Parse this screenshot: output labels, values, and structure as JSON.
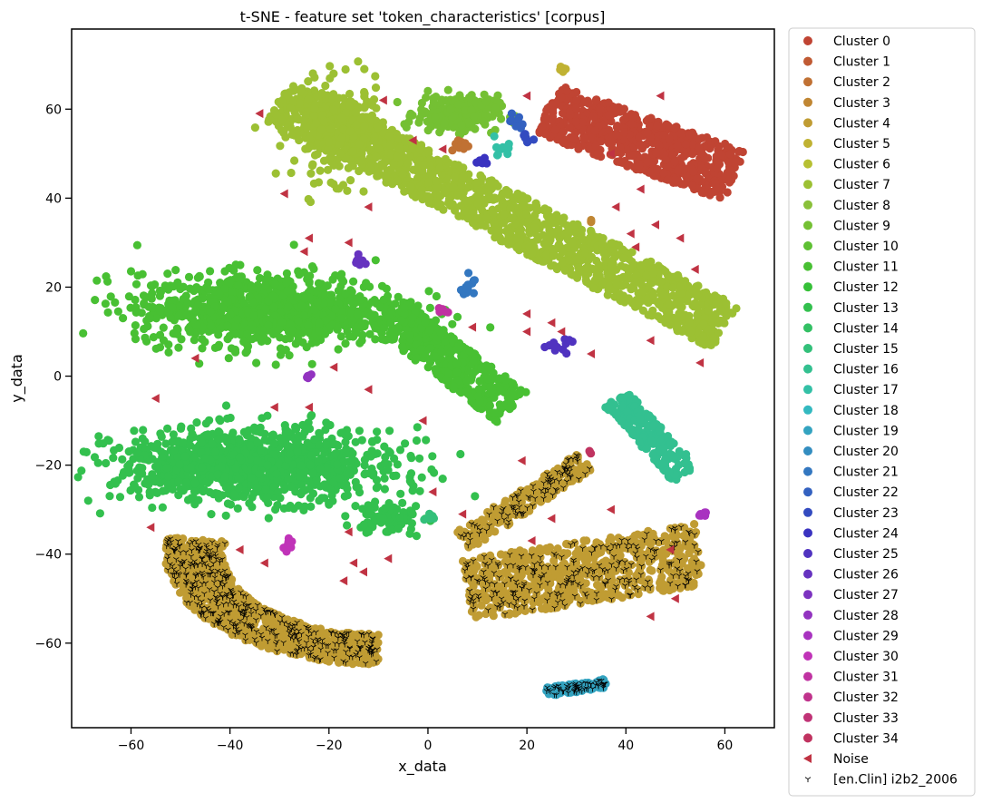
{
  "chart_data": {
    "type": "scatter",
    "title": "t-SNE - feature set 'token_characteristics' [corpus]",
    "xlabel": "x_data",
    "ylabel": "y_data",
    "xlim": [
      -72,
      70
    ],
    "ylim": [
      -79,
      78
    ],
    "xticks": [
      -60,
      -40,
      -20,
      0,
      20,
      40,
      60
    ],
    "yticks": [
      -60,
      -40,
      -20,
      0,
      20,
      40,
      60
    ],
    "xtick_labels": [
      "−60",
      "−40",
      "−20",
      "0",
      "20",
      "40",
      "60"
    ],
    "ytick_labels": [
      "−60",
      "−40",
      "−20",
      "0",
      "20",
      "40",
      "60"
    ],
    "grid": false,
    "legend_position": "outside-right",
    "legend": [
      {
        "label": "Cluster 0",
        "color": "#c04433",
        "marker": "circle"
      },
      {
        "label": "Cluster 1",
        "color": "#c05a33",
        "marker": "circle"
      },
      {
        "label": "Cluster 2",
        "color": "#c07133",
        "marker": "circle"
      },
      {
        "label": "Cluster 3",
        "color": "#c08633",
        "marker": "circle"
      },
      {
        "label": "Cluster 4",
        "color": "#c09c33",
        "marker": "circle"
      },
      {
        "label": "Cluster 5",
        "color": "#c0b233",
        "marker": "circle"
      },
      {
        "label": "Cluster 6",
        "color": "#b7c033",
        "marker": "circle"
      },
      {
        "label": "Cluster 7",
        "color": "#9cc033",
        "marker": "circle"
      },
      {
        "label": "Cluster 8",
        "color": "#8ac03a",
        "marker": "circle"
      },
      {
        "label": "Cluster 9",
        "color": "#74c033",
        "marker": "circle"
      },
      {
        "label": "Cluster 10",
        "color": "#5ec033",
        "marker": "circle"
      },
      {
        "label": "Cluster 11",
        "color": "#48c033",
        "marker": "circle"
      },
      {
        "label": "Cluster 12",
        "color": "#36c038",
        "marker": "circle"
      },
      {
        "label": "Cluster 13",
        "color": "#33c04e",
        "marker": "circle"
      },
      {
        "label": "Cluster 14",
        "color": "#33c064",
        "marker": "circle"
      },
      {
        "label": "Cluster 15",
        "color": "#33c07a",
        "marker": "circle"
      },
      {
        "label": "Cluster 16",
        "color": "#33c090",
        "marker": "circle"
      },
      {
        "label": "Cluster 17",
        "color": "#33c0a6",
        "marker": "circle"
      },
      {
        "label": "Cluster 18",
        "color": "#33b9c0",
        "marker": "circle"
      },
      {
        "label": "Cluster 19",
        "color": "#33a3c0",
        "marker": "circle"
      },
      {
        "label": "Cluster 20",
        "color": "#338dc0",
        "marker": "circle"
      },
      {
        "label": "Cluster 21",
        "color": "#3377c0",
        "marker": "circle"
      },
      {
        "label": "Cluster 22",
        "color": "#3361c0",
        "marker": "circle"
      },
      {
        "label": "Cluster 23",
        "color": "#334bc0",
        "marker": "circle"
      },
      {
        "label": "Cluster 24",
        "color": "#3a33c0",
        "marker": "circle"
      },
      {
        "label": "Cluster 25",
        "color": "#5033c0",
        "marker": "circle"
      },
      {
        "label": "Cluster 26",
        "color": "#6633c0",
        "marker": "circle"
      },
      {
        "label": "Cluster 27",
        "color": "#7c33c0",
        "marker": "circle"
      },
      {
        "label": "Cluster 28",
        "color": "#9233c0",
        "marker": "circle"
      },
      {
        "label": "Cluster 29",
        "color": "#a833c0",
        "marker": "circle"
      },
      {
        "label": "Cluster 30",
        "color": "#c033b8",
        "marker": "circle"
      },
      {
        "label": "Cluster 31",
        "color": "#c033a2",
        "marker": "circle"
      },
      {
        "label": "Cluster 32",
        "color": "#c0338c",
        "marker": "circle"
      },
      {
        "label": "Cluster 33",
        "color": "#c03376",
        "marker": "circle"
      },
      {
        "label": "Cluster 34",
        "color": "#c03360",
        "marker": "circle"
      },
      {
        "label": "Noise",
        "color": "#c03343",
        "marker": "triangle-left"
      },
      {
        "label": "[en.Clin] i2b2_2006",
        "color": "#000000",
        "marker": "tri-down"
      }
    ],
    "clusters": [
      {
        "label": "Cluster 0",
        "color": "#c04433",
        "kind": "band",
        "x1": 24,
        "y1": 60,
        "x2": 62,
        "y2": 45,
        "width": 12,
        "n": 700
      },
      {
        "label": "Cluster 7",
        "color": "#9cc033",
        "kind": "band",
        "x1": -30,
        "y1": 62,
        "x2": 60,
        "y2": 11,
        "width": 11,
        "n": 1400
      },
      {
        "label": "Cluster 7",
        "color": "#9cc033",
        "kind": "blob",
        "cx": -18,
        "cy": 55,
        "rx": 10,
        "ry": 12,
        "n": 300
      },
      {
        "label": "Cluster 9",
        "color": "#74c033",
        "kind": "blob",
        "cx": 6,
        "cy": 59,
        "rx": 9,
        "ry": 4.5,
        "n": 220
      },
      {
        "label": "Cluster 11",
        "color": "#48c033",
        "kind": "blob",
        "cx": -32,
        "cy": 15,
        "rx": 30,
        "ry": 9,
        "n": 1000
      },
      {
        "label": "Cluster 11",
        "color": "#48c033",
        "kind": "band",
        "x1": -8,
        "y1": 14,
        "x2": 17,
        "y2": -7,
        "width": 9,
        "n": 450
      },
      {
        "label": "Cluster 13",
        "color": "#33c04e",
        "kind": "blob",
        "cx": -35,
        "cy": -20,
        "rx": 31,
        "ry": 9,
        "n": 1100
      },
      {
        "label": "Cluster 13",
        "color": "#33c04e",
        "kind": "blob",
        "cx": -8,
        "cy": -32,
        "rx": 8,
        "ry": 4,
        "n": 80
      },
      {
        "label": "Cluster 16",
        "color": "#33c090",
        "kind": "band",
        "x1": 38,
        "y1": -5,
        "x2": 52,
        "y2": -22,
        "width": 6,
        "n": 220
      },
      {
        "label": "Cluster 4",
        "color": "#c09c33",
        "kind": "arc",
        "cx": -10,
        "cy": -40,
        "rx": 40,
        "ry": 23,
        "n": 1000
      },
      {
        "label": "Cluster 4",
        "color": "#c09c33",
        "kind": "band",
        "x1": 8,
        "y1": -48,
        "x2": 55,
        "y2": -40,
        "width": 14,
        "n": 700
      },
      {
        "label": "Cluster 4",
        "color": "#c09c33",
        "kind": "band",
        "x1": 7,
        "y1": -37,
        "x2": 32,
        "y2": -19,
        "width": 5,
        "n": 220
      },
      {
        "label": "Cluster 19",
        "color": "#33a3c0",
        "kind": "band",
        "x1": 24,
        "y1": -71,
        "x2": 36,
        "y2": -69,
        "width": 2,
        "n": 120
      },
      {
        "label": "Cluster 5",
        "color": "#c0b233",
        "kind": "blob",
        "cx": 28,
        "cy": 69,
        "rx": 2,
        "ry": 1,
        "n": 8
      },
      {
        "label": "Cluster 2",
        "color": "#c07133",
        "kind": "blob",
        "cx": 7,
        "cy": 52,
        "rx": 2,
        "ry": 2,
        "n": 12
      },
      {
        "label": "Cluster 22",
        "color": "#3361c0",
        "kind": "blob",
        "cx": 18,
        "cy": 57,
        "rx": 1.5,
        "ry": 1.5,
        "n": 10
      },
      {
        "label": "Cluster 23",
        "color": "#334bc0",
        "kind": "blob",
        "cx": 20,
        "cy": 53,
        "rx": 1.2,
        "ry": 1.2,
        "n": 8
      },
      {
        "label": "Cluster 24",
        "color": "#3a33c0",
        "kind": "blob",
        "cx": 11,
        "cy": 48,
        "rx": 1.2,
        "ry": 1,
        "n": 6
      },
      {
        "label": "Cluster 17",
        "color": "#33c0a6",
        "kind": "blob",
        "cx": 15,
        "cy": 51,
        "rx": 1.5,
        "ry": 2,
        "n": 10
      },
      {
        "label": "Cluster 21",
        "color": "#3377c0",
        "kind": "blob",
        "cx": 8,
        "cy": 20,
        "rx": 1.5,
        "ry": 3,
        "n": 15
      },
      {
        "label": "Cluster 25",
        "color": "#5033c0",
        "kind": "blob",
        "cx": 26,
        "cy": 7,
        "rx": 3,
        "ry": 1.5,
        "n": 14
      },
      {
        "label": "Cluster 26",
        "color": "#6633c0",
        "kind": "blob",
        "cx": -14,
        "cy": 26,
        "rx": 1.5,
        "ry": 1.5,
        "n": 8
      },
      {
        "label": "Cluster 28",
        "color": "#9233c0",
        "kind": "blob",
        "cx": -24,
        "cy": 0,
        "rx": 1,
        "ry": 1,
        "n": 6
      },
      {
        "label": "Cluster 30",
        "color": "#c033b8",
        "kind": "blob",
        "cx": -28,
        "cy": -38,
        "rx": 1.5,
        "ry": 1.5,
        "n": 10
      },
      {
        "label": "Cluster 31",
        "color": "#c033a2",
        "kind": "blob",
        "cx": 3,
        "cy": 15,
        "rx": 1.2,
        "ry": 0.8,
        "n": 6
      },
      {
        "label": "Cluster 29",
        "color": "#a833c0",
        "kind": "blob",
        "cx": 55,
        "cy": -31,
        "rx": 1.5,
        "ry": 1,
        "n": 6
      },
      {
        "label": "Cluster 34",
        "color": "#c03360",
        "kind": "blob",
        "cx": 33,
        "cy": -17,
        "rx": 0.6,
        "ry": 0.6,
        "n": 3
      },
      {
        "label": "Cluster 3",
        "color": "#c08633",
        "kind": "blob",
        "cx": 33,
        "cy": 35,
        "rx": 0.6,
        "ry": 0.6,
        "n": 2
      },
      {
        "label": "Cluster 15",
        "color": "#33c07a",
        "kind": "blob",
        "cx": 0,
        "cy": -32,
        "rx": 1.5,
        "ry": 1,
        "n": 6
      }
    ],
    "noise": [
      [
        -34,
        59
      ],
      [
        -9,
        62
      ],
      [
        -12,
        38
      ],
      [
        -24,
        31
      ],
      [
        -29,
        41
      ],
      [
        -16,
        30
      ],
      [
        -3,
        53
      ],
      [
        3,
        51
      ],
      [
        20,
        63
      ],
      [
        47,
        63
      ],
      [
        37,
        50
      ],
      [
        43,
        42
      ],
      [
        38,
        38
      ],
      [
        41,
        32
      ],
      [
        46,
        34
      ],
      [
        42,
        29
      ],
      [
        51,
        31
      ],
      [
        54,
        24
      ],
      [
        55,
        3
      ],
      [
        45,
        8
      ],
      [
        33,
        5
      ],
      [
        27,
        10
      ],
      [
        20,
        14
      ],
      [
        20,
        10
      ],
      [
        25,
        12
      ],
      [
        9,
        11
      ],
      [
        -25,
        28
      ],
      [
        -55,
        -5
      ],
      [
        -47,
        4
      ],
      [
        -31,
        -7
      ],
      [
        -24,
        -7
      ],
      [
        -19,
        2
      ],
      [
        -12,
        -3
      ],
      [
        -1,
        -10
      ],
      [
        1,
        -26
      ],
      [
        -56,
        -34
      ],
      [
        -38,
        -39
      ],
      [
        -33,
        -42
      ],
      [
        -16,
        -35
      ],
      [
        -13,
        -44
      ],
      [
        -8,
        -41
      ],
      [
        7,
        -31
      ],
      [
        19,
        -19
      ],
      [
        21,
        -37
      ],
      [
        25,
        -32
      ],
      [
        37,
        -30
      ],
      [
        45,
        -54
      ],
      [
        49,
        -39
      ],
      [
        50,
        -50
      ],
      [
        -17,
        -46
      ],
      [
        -15,
        -42
      ]
    ],
    "corpus_points": {
      "label": "[en.Clin] i2b2_2006",
      "note": "dense black tri-down markers overlaid on Cluster 4 and Cluster 19",
      "on_clusters": [
        "Cluster 4",
        "Cluster 19"
      ]
    }
  }
}
